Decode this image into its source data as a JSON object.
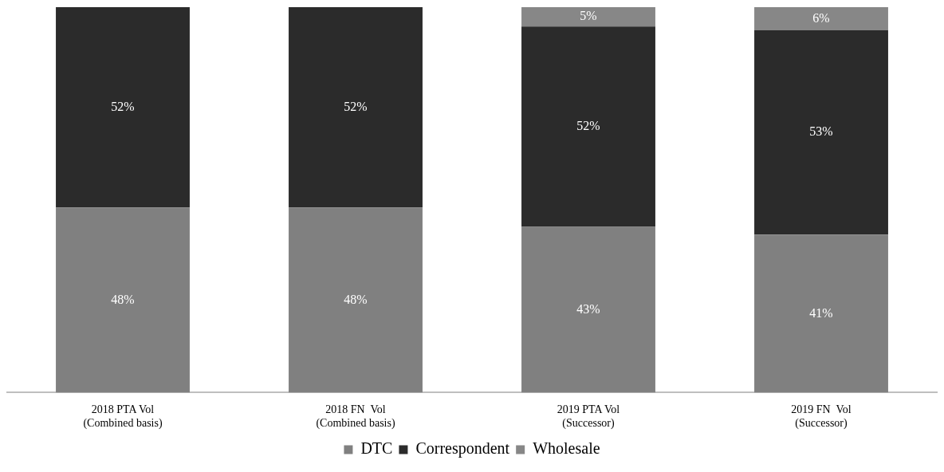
{
  "chart_data": {
    "type": "bar",
    "stacked": true,
    "categories": [
      "2018 PTA Vol\n(Combined basis)",
      "2018 FN  Vol\n(Combined basis)",
      "2019 PTA Vol\n(Successor)",
      "2019 FN  Vol\n(Successor)"
    ],
    "series": [
      {
        "name": "DTC",
        "color": "#808080",
        "values": [
          48,
          48,
          43,
          41
        ],
        "value_labels": [
          "48%",
          "48%",
          "43%",
          "41%"
        ]
      },
      {
        "name": "Correspondent",
        "color": "#2b2b2b",
        "values": [
          52,
          52,
          52,
          53
        ],
        "value_labels": [
          "52%",
          "52%",
          "52%",
          "53%"
        ]
      },
      {
        "name": "Wholesale",
        "color": "#878787",
        "values": [
          null,
          null,
          5,
          6
        ],
        "value_labels": [
          null,
          null,
          "5%",
          "6%"
        ]
      }
    ],
    "ylim": [
      0,
      100
    ],
    "tick_labels": "x",
    "legend": "bottom",
    "grid": false
  }
}
